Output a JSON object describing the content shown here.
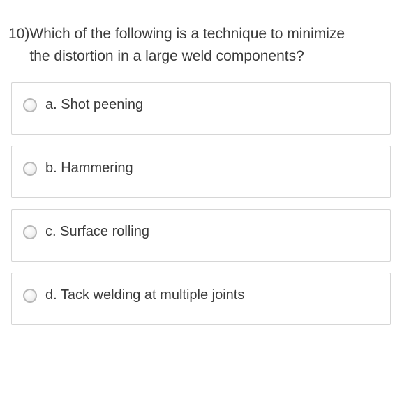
{
  "question": {
    "number": "10)",
    "text": "Which of the following is a technique to minimize the distortion in a large weld components?"
  },
  "options": [
    {
      "label": "a. Shot peening"
    },
    {
      "label": "b. Hammering"
    },
    {
      "label": "c. Surface rolling"
    },
    {
      "label": "d. Tack welding at multiple joints"
    }
  ],
  "colors": {
    "text": "#3a3a3a",
    "border": "#d6d6d6",
    "radio_border": "#b8b8b8",
    "background": "#ffffff"
  },
  "typography": {
    "question_fontsize": 21,
    "option_fontsize": 20,
    "font_family": "Arial"
  }
}
